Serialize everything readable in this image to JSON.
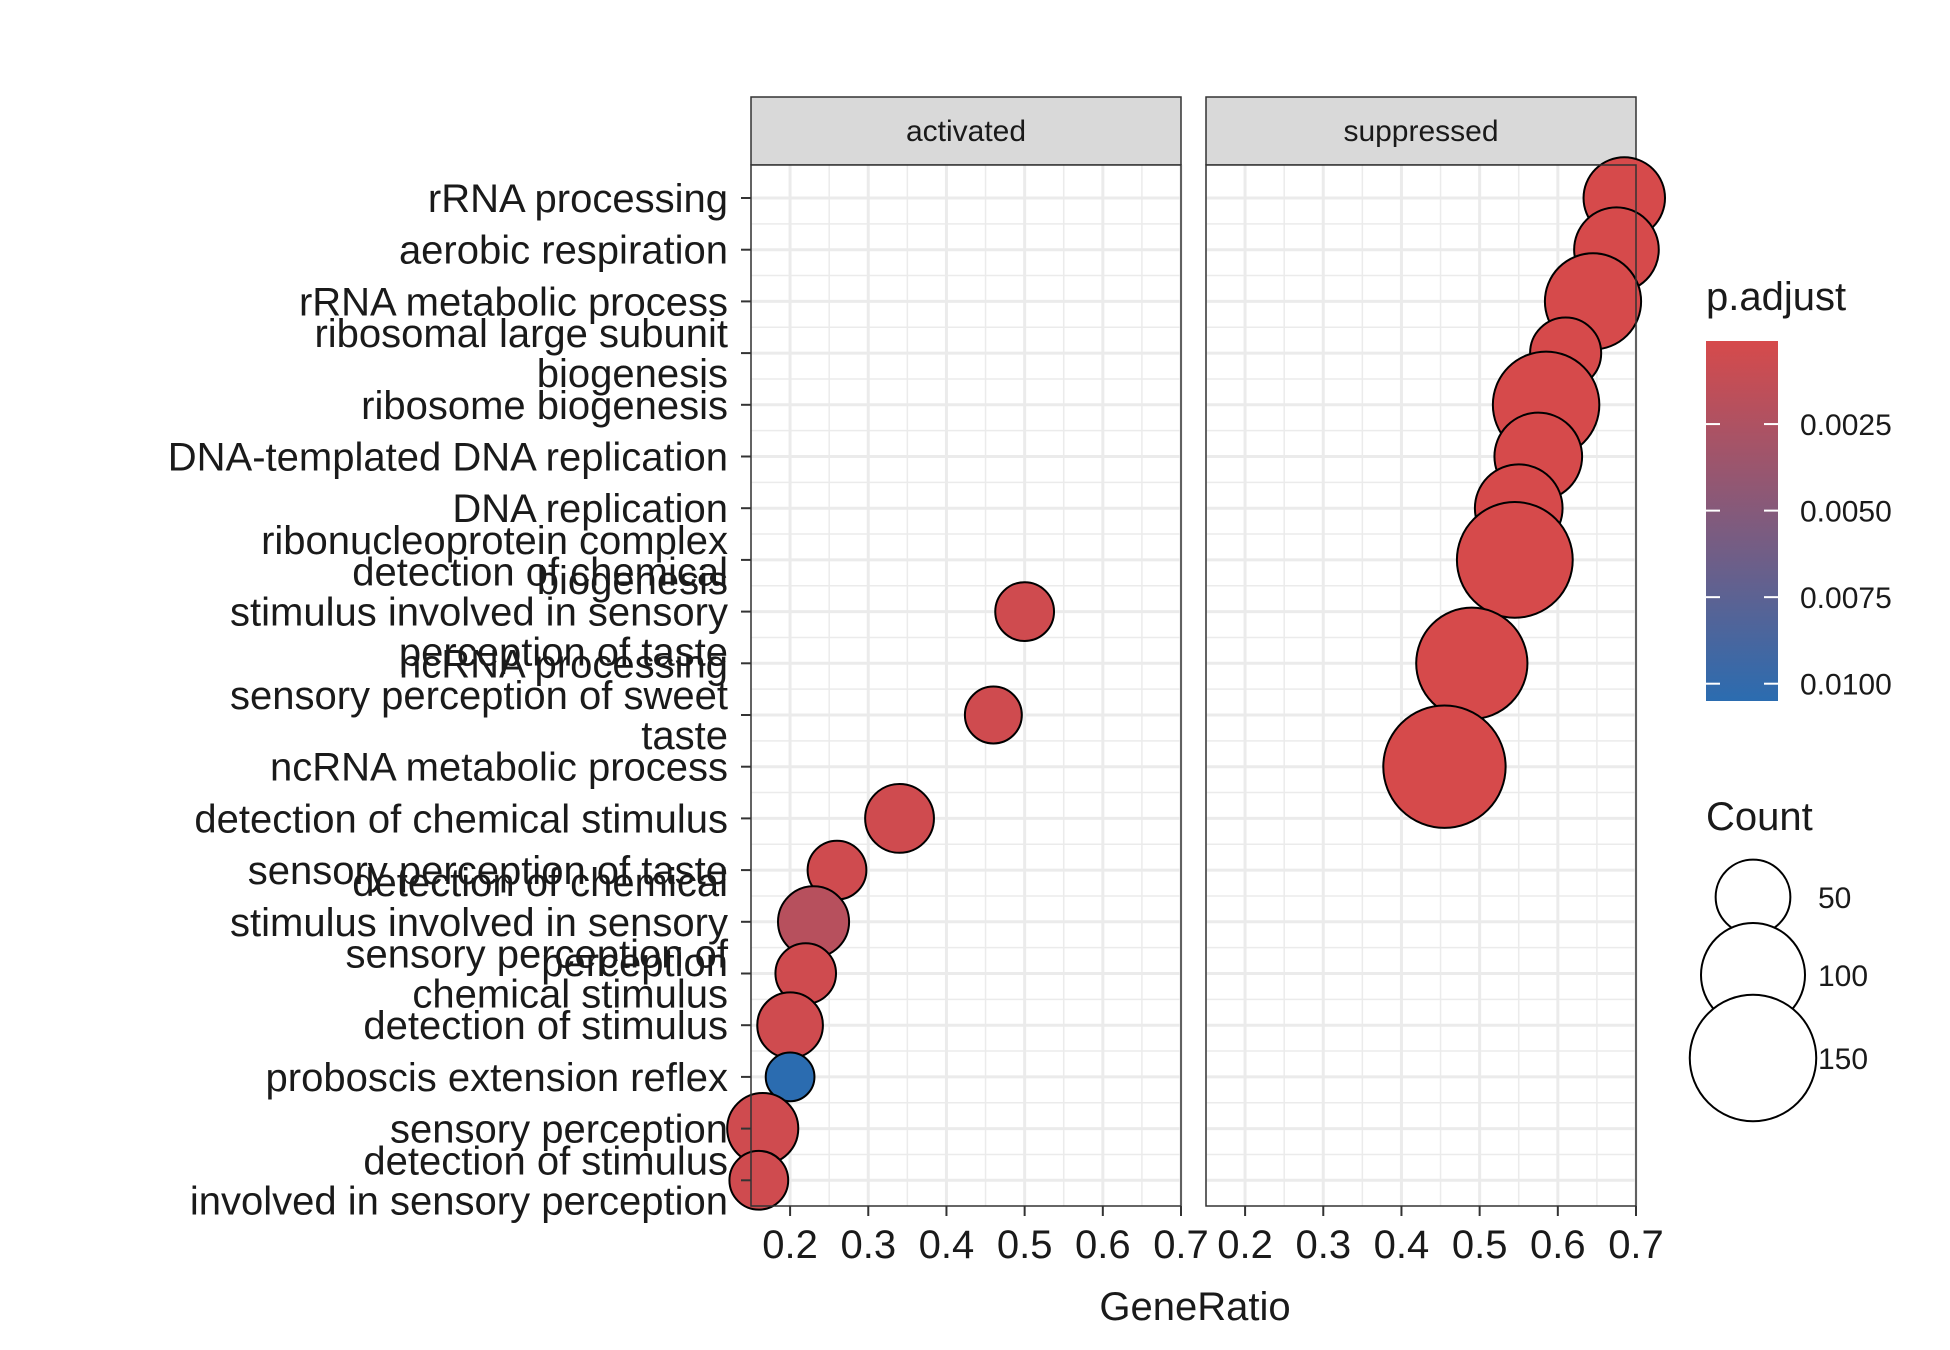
{
  "chart_data": {
    "type": "scatter",
    "xlabel": "GeneRatio",
    "ylabel": "",
    "xlim": [
      0.15,
      0.7
    ],
    "x_ticks": [
      0.2,
      0.3,
      0.4,
      0.5,
      0.6,
      0.7
    ],
    "x_tick_labels": [
      "0.2",
      "0.3",
      "0.4",
      "0.5",
      "0.6",
      "0.7"
    ],
    "grid": true,
    "facets": [
      "activated",
      "suppressed"
    ],
    "categories": [
      "rRNA processing",
      "aerobic respiration",
      "rRNA metabolic process",
      "ribosomal large subunit biogenesis",
      "ribosome biogenesis",
      "DNA-templated DNA replication",
      "DNA replication",
      "ribonucleoprotein complex biogenesis",
      "detection of chemical stimulus involved in sensory perception of taste",
      "ncRNA processing",
      "sensory perception of sweet taste",
      "ncRNA metabolic process",
      "detection of chemical stimulus",
      "sensory perception of taste",
      "detection of chemical stimulus involved in sensory perception",
      "sensory perception of chemical stimulus",
      "detection of stimulus",
      "proboscis extension reflex",
      "sensory perception",
      "detection of stimulus involved in sensory perception"
    ],
    "category_label_lines": [
      [
        "rRNA processing"
      ],
      [
        "aerobic respiration"
      ],
      [
        "rRNA metabolic process"
      ],
      [
        "ribosomal large subunit",
        "biogenesis"
      ],
      [
        "ribosome biogenesis"
      ],
      [
        "DNA-templated DNA replication"
      ],
      [
        "DNA replication"
      ],
      [
        "ribonucleoprotein complex",
        "biogenesis"
      ],
      [
        "detection of chemical",
        "stimulus involved in sensory",
        "perception of taste"
      ],
      [
        "ncRNA processing"
      ],
      [
        "sensory perception of sweet",
        "taste"
      ],
      [
        "ncRNA metabolic process"
      ],
      [
        "detection of chemical stimulus"
      ],
      [
        "sensory perception of taste"
      ],
      [
        "detection of chemical",
        "stimulus involved in sensory",
        "perception"
      ],
      [
        "sensory perception of",
        "chemical stimulus"
      ],
      [
        "detection of stimulus"
      ],
      [
        "proboscis extension reflex"
      ],
      [
        "sensory perception"
      ],
      [
        "detection of stimulus",
        "involved in sensory perception"
      ]
    ],
    "series": [
      {
        "facet": "activated",
        "points": [
          {
            "category": "detection of chemical stimulus involved in sensory perception of taste",
            "x": 0.5,
            "count": 30,
            "p_adjust": 0.0005
          },
          {
            "category": "sensory perception of sweet taste",
            "x": 0.46,
            "count": 28,
            "p_adjust": 0.0005
          },
          {
            "category": "detection of chemical stimulus",
            "x": 0.34,
            "count": 42,
            "p_adjust": 0.0005
          },
          {
            "category": "sensory perception of taste",
            "x": 0.26,
            "count": 30,
            "p_adjust": 0.0005
          },
          {
            "category": "detection of chemical stimulus involved in sensory perception",
            "x": 0.23,
            "count": 45,
            "p_adjust": 0.002
          },
          {
            "category": "sensory perception of chemical stimulus",
            "x": 0.22,
            "count": 32,
            "p_adjust": 0.0005
          },
          {
            "category": "detection of stimulus",
            "x": 0.2,
            "count": 38,
            "p_adjust": 0.0005
          },
          {
            "category": "proboscis extension reflex",
            "x": 0.2,
            "count": 20,
            "p_adjust": 0.0105
          },
          {
            "category": "sensory perception",
            "x": 0.165,
            "count": 45,
            "p_adjust": 0.0005
          },
          {
            "category": "detection of stimulus involved in sensory perception",
            "x": 0.16,
            "count": 30,
            "p_adjust": 0.0005
          }
        ]
      },
      {
        "facet": "suppressed",
        "points": [
          {
            "category": "rRNA processing",
            "x": 0.685,
            "count": 60,
            "p_adjust": 0.0001
          },
          {
            "category": "aerobic respiration",
            "x": 0.675,
            "count": 65,
            "p_adjust": 0.0001
          },
          {
            "category": "rRNA metabolic process",
            "x": 0.645,
            "count": 85,
            "p_adjust": 0.0001
          },
          {
            "category": "ribosomal large subunit biogenesis",
            "x": 0.61,
            "count": 45,
            "p_adjust": 0.0001
          },
          {
            "category": "ribosome biogenesis",
            "x": 0.585,
            "count": 105,
            "p_adjust": 0.0001
          },
          {
            "category": "DNA-templated DNA replication",
            "x": 0.575,
            "count": 70,
            "p_adjust": 0.0001
          },
          {
            "category": "DNA replication",
            "x": 0.55,
            "count": 70,
            "p_adjust": 0.0001
          },
          {
            "category": "ribonucleoprotein complex biogenesis",
            "x": 0.545,
            "count": 125,
            "p_adjust": 0.0001
          },
          {
            "category": "ncRNA processing",
            "x": 0.49,
            "count": 115,
            "p_adjust": 0.0001
          },
          {
            "category": "ncRNA metabolic process",
            "x": 0.455,
            "count": 140,
            "p_adjust": 0.0001
          }
        ]
      }
    ],
    "legend": {
      "placement": "right",
      "color_title": "p.adjust",
      "color_ticks": [
        0.0025,
        0.005,
        0.0075,
        0.01
      ],
      "color_tick_labels": [
        "0.0025",
        "0.0050",
        "0.0075",
        "0.0100"
      ],
      "color_range": [
        0.0001,
        0.0105
      ],
      "color_low": "#d64a4b",
      "color_high": "#2b6cb0",
      "size_title": "Count",
      "size_values": [
        50,
        100,
        150
      ],
      "size_labels": [
        "50",
        "100",
        "150"
      ]
    },
    "colors": {
      "strip_fill": "#d9d9d9",
      "panel_border": "#333333",
      "grid": "#ebebeb",
      "point_stroke": "#000000"
    }
  }
}
